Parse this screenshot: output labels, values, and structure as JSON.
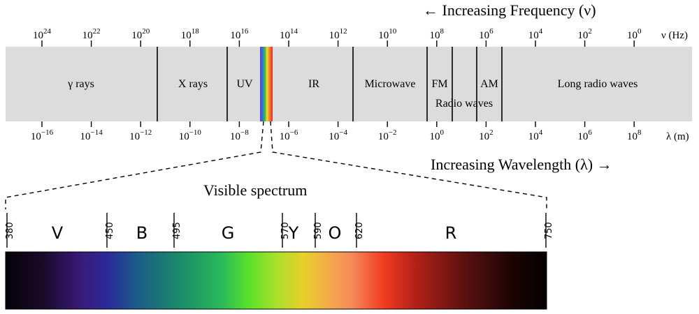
{
  "frequency_heading": "← Increasing Frequency (ν)",
  "wavelength_heading": "Increasing Wavelength (λ) →",
  "frequency_unit": "ν (Hz)",
  "wavelength_unit": "λ (m)",
  "frequency_ticks": [
    {
      "base": "10",
      "exp": "24"
    },
    {
      "base": "10",
      "exp": "22"
    },
    {
      "base": "10",
      "exp": "20"
    },
    {
      "base": "10",
      "exp": "18"
    },
    {
      "base": "10",
      "exp": "16"
    },
    {
      "base": "10",
      "exp": "14"
    },
    {
      "base": "10",
      "exp": "12"
    },
    {
      "base": "10",
      "exp": "10"
    },
    {
      "base": "10",
      "exp": "8"
    },
    {
      "base": "10",
      "exp": "6"
    },
    {
      "base": "10",
      "exp": "4"
    },
    {
      "base": "10",
      "exp": "2"
    },
    {
      "base": "10",
      "exp": "0"
    }
  ],
  "wavelength_ticks": [
    {
      "base": "10",
      "exp": "−16"
    },
    {
      "base": "10",
      "exp": "−14"
    },
    {
      "base": "10",
      "exp": "−12"
    },
    {
      "base": "10",
      "exp": "−10"
    },
    {
      "base": "10",
      "exp": "−8"
    },
    {
      "base": "10",
      "exp": "−6"
    },
    {
      "base": "10",
      "exp": "−4"
    },
    {
      "base": "10",
      "exp": "−2"
    },
    {
      "base": "10",
      "exp": "0"
    },
    {
      "base": "10",
      "exp": "2"
    },
    {
      "base": "10",
      "exp": "4"
    },
    {
      "base": "10",
      "exp": "6"
    },
    {
      "base": "10",
      "exp": "8"
    }
  ],
  "bands": {
    "gamma": "γ rays",
    "xray": "X rays",
    "uv": "UV",
    "ir": "IR",
    "microwave": "Microwave",
    "fm": "FM",
    "am": "AM",
    "radio_waves": "Radio waves",
    "long_radio": "Long radio waves"
  },
  "visible_title": "Visible spectrum",
  "visible_boundaries_nm": [
    "380",
    "450",
    "495",
    "570",
    "590",
    "620",
    "750"
  ],
  "visible_colors": [
    "V",
    "B",
    "G",
    "Y",
    "O",
    "R"
  ],
  "colors": {
    "band_fill": "#dcdcdc",
    "line": "#000000"
  }
}
